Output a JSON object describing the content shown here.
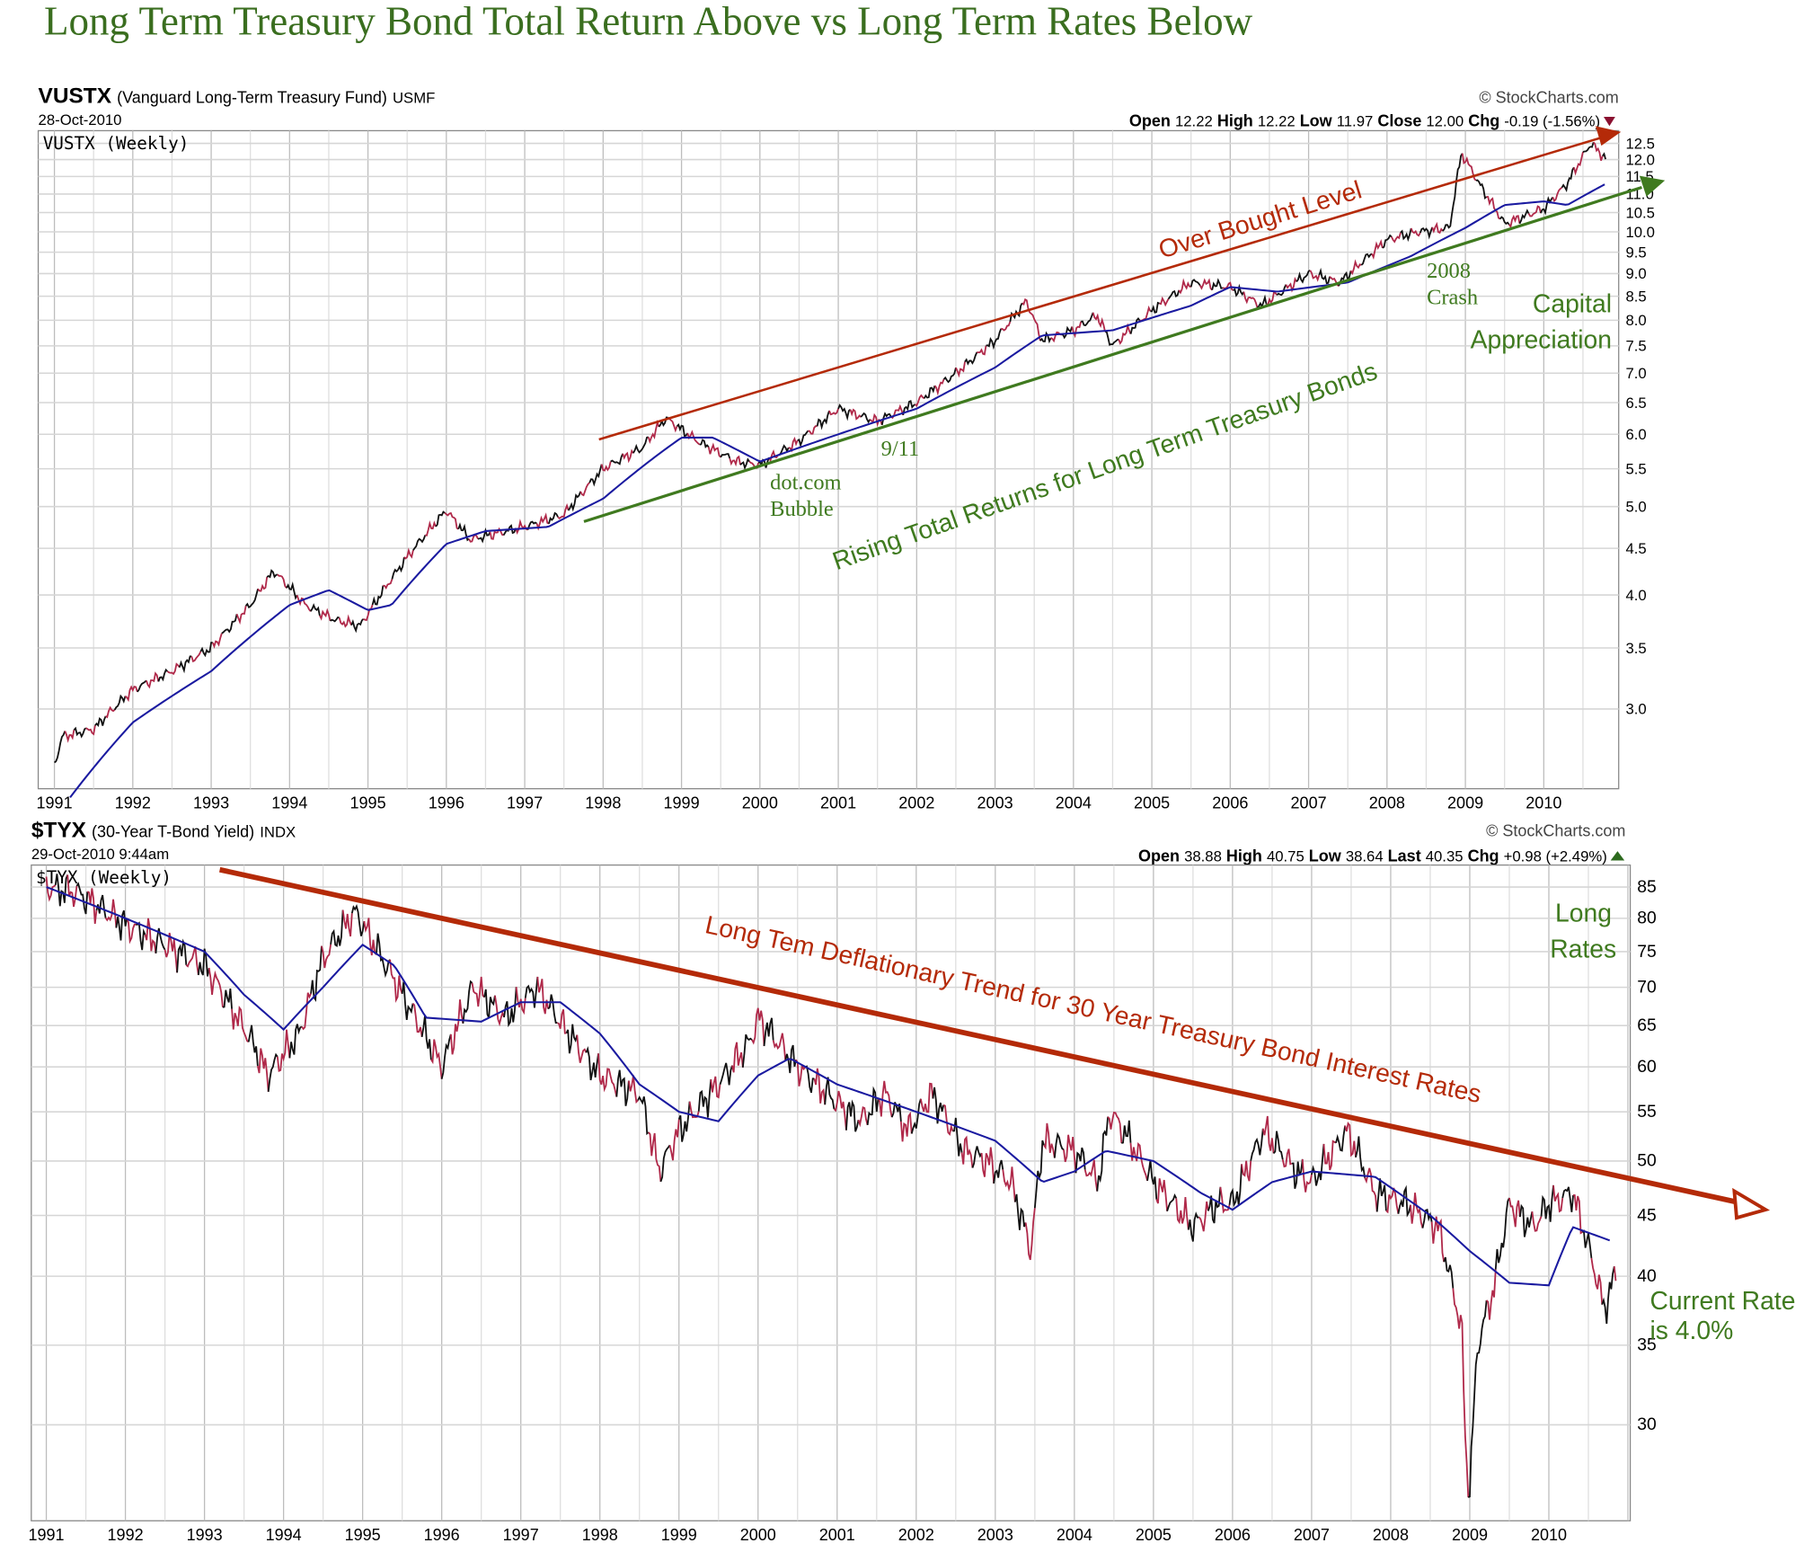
{
  "page_title": "Long Term Treasury Bond Total Return Above vs Long Term Rates Below",
  "colors": {
    "title": "#3a6e1f",
    "annot_green": "#3f7a1f",
    "annot_red": "#b42a08",
    "price_up": "#111111",
    "price_down": "#b0294a",
    "ma": "#1a1aa0",
    "grid": "#cfcfcf"
  },
  "chart_data": [
    {
      "type": "line",
      "symbol": "VUSTX",
      "name": "(Vanguard Long-Term Treasury Fund)",
      "exchange": "USMF",
      "date": "28-Oct-2010",
      "watermark": "© StockCharts.com",
      "legend": "VUSTX (Weekly)",
      "quote": [
        {
          "label": "Open",
          "value": "12.22"
        },
        {
          "label": "High",
          "value": "12.22"
        },
        {
          "label": "Low",
          "value": "11.97"
        },
        {
          "label": "Close",
          "value": "12.00"
        },
        {
          "label": "Chg",
          "value": "-0.19 (-1.56%)"
        }
      ],
      "change_direction": "down",
      "yscale": "log",
      "ylim": [
        2.5,
        12.8
      ],
      "xlim": [
        1991.0,
        2010.95
      ],
      "yticks": [
        "3.0",
        "3.5",
        "4.0",
        "4.5",
        "5.0",
        "5.5",
        "6.0",
        "6.5",
        "7.0",
        "7.5",
        "8.0",
        "8.5",
        "9.0",
        "9.5",
        "10.0",
        "10.5",
        "11.0",
        "11.5",
        "12.0",
        "12.5"
      ],
      "xticks": [
        "1991",
        "1992",
        "1993",
        "1994",
        "1995",
        "1996",
        "1997",
        "1998",
        "1999",
        "2000",
        "2001",
        "2002",
        "2003",
        "2004",
        "2005",
        "2006",
        "2007",
        "2008",
        "2009",
        "2010"
      ],
      "series": [
        {
          "name": "VUSTX weekly price",
          "x": [
            1991.0,
            1991.1,
            1991.5,
            1992.0,
            1992.5,
            1993.0,
            1993.5,
            1993.8,
            1994.2,
            1994.6,
            1994.9,
            1995.5,
            1996.0,
            1996.3,
            1997.0,
            1997.5,
            1998.0,
            1998.5,
            1998.8,
            1999.2,
            1999.7,
            2000.0,
            2000.5,
            2001.0,
            2001.5,
            2002.0,
            2002.5,
            2003.0,
            2003.4,
            2003.6,
            2004.0,
            2004.3,
            2004.5,
            2005.0,
            2005.5,
            2006.0,
            2006.4,
            2007.0,
            2007.4,
            2008.0,
            2008.4,
            2008.8,
            2008.95,
            2009.2,
            2009.5,
            2010.0,
            2010.3,
            2010.6,
            2010.8
          ],
          "values": [
            2.6,
            2.8,
            2.85,
            3.15,
            3.3,
            3.5,
            3.9,
            4.25,
            3.9,
            3.75,
            3.7,
            4.4,
            4.95,
            4.6,
            4.75,
            4.9,
            5.5,
            5.8,
            6.25,
            5.9,
            5.6,
            5.55,
            5.9,
            6.4,
            6.2,
            6.5,
            7.0,
            7.6,
            8.4,
            7.6,
            7.8,
            8.1,
            7.5,
            8.2,
            8.8,
            8.7,
            8.3,
            9.0,
            8.8,
            9.8,
            10.0,
            10.1,
            12.2,
            11.2,
            10.2,
            10.6,
            11.3,
            12.5,
            12.0
          ]
        },
        {
          "name": "Moving average",
          "x": [
            1991.2,
            1992.0,
            1993.0,
            1994.0,
            1994.5,
            1995.0,
            1995.3,
            1996.0,
            1996.5,
            1997.3,
            1998.0,
            1998.7,
            1999.0,
            1999.4,
            2000.0,
            2001.0,
            2002.0,
            2003.0,
            2003.6,
            2004.5,
            2005.5,
            2006.0,
            2006.6,
            2007.5,
            2008.3,
            2009.0,
            2009.5,
            2010.0,
            2010.3,
            2010.8
          ],
          "values": [
            2.4,
            2.9,
            3.3,
            3.9,
            4.05,
            3.85,
            3.9,
            4.55,
            4.7,
            4.75,
            5.1,
            5.7,
            5.95,
            5.95,
            5.6,
            6.0,
            6.4,
            7.1,
            7.7,
            7.8,
            8.3,
            8.7,
            8.6,
            8.8,
            9.4,
            10.1,
            10.7,
            10.8,
            10.7,
            11.3
          ]
        }
      ],
      "annotations": {
        "overbought": "Over Bought Level",
        "rising": "Rising Total Returns for Long Term Treasury Bonds",
        "nine_eleven": "9/11",
        "dotcom_1": "dot.com",
        "dotcom_2": "Bubble",
        "crash_1": "2008",
        "crash_2": "Crash",
        "capital_1": "Capital",
        "capital_2": "Appreciation"
      }
    },
    {
      "type": "line",
      "symbol": "$TYX",
      "name": "(30-Year T-Bond Yield)",
      "exchange": "INDX",
      "date": "29-Oct-2010 9:44am",
      "watermark": "© StockCharts.com",
      "legend": "$TYX (Weekly)",
      "quote": [
        {
          "label": "Open",
          "value": "38.88"
        },
        {
          "label": "High",
          "value": "40.75"
        },
        {
          "label": "Low",
          "value": "38.64"
        },
        {
          "label": "Last",
          "value": "40.35"
        },
        {
          "label": "Chg",
          "value": "+0.98 (+2.49%)"
        }
      ],
      "change_direction": "up",
      "yscale": "log",
      "ylim": [
        26,
        88
      ],
      "xlim": [
        1991.0,
        2010.95
      ],
      "yticks": [
        "30",
        "35",
        "40",
        "45",
        "50",
        "55",
        "60",
        "65",
        "70",
        "75",
        "80",
        "85"
      ],
      "xticks": [
        "1991",
        "1992",
        "1993",
        "1994",
        "1995",
        "1996",
        "1997",
        "1998",
        "1999",
        "2000",
        "2001",
        "2002",
        "2003",
        "2004",
        "2005",
        "2006",
        "2007",
        "2008",
        "2009",
        "2010"
      ],
      "series": [
        {
          "name": "$TYX weekly yield",
          "x": [
            1991.0,
            1991.4,
            1992.0,
            1992.5,
            1993.0,
            1993.6,
            1993.8,
            1994.2,
            1994.5,
            1994.9,
            1995.5,
            1996.0,
            1996.4,
            1996.8,
            1997.2,
            1997.6,
            1998.0,
            1998.5,
            1998.75,
            1999.0,
            1999.5,
            1999.9,
            2000.0,
            2000.5,
            2001.0,
            2001.3,
            2001.6,
            2001.9,
            2002.2,
            2002.6,
            2002.9,
            2003.2,
            2003.45,
            2003.6,
            2004.0,
            2004.3,
            2004.45,
            2004.7,
            2005.0,
            2005.5,
            2005.8,
            2006.0,
            2006.4,
            2006.8,
            2007.0,
            2007.45,
            2007.8,
            2008.2,
            2008.6,
            2008.9,
            2008.95,
            2009.0,
            2009.1,
            2009.3,
            2009.5,
            2009.8,
            2010.0,
            2010.3,
            2010.6,
            2010.7,
            2010.85
          ],
          "values": [
            85,
            84,
            79,
            76,
            73,
            63,
            59,
            64,
            74,
            81,
            69,
            60,
            70,
            66,
            70,
            64,
            59,
            57,
            49,
            53,
            58,
            63,
            66,
            60,
            56,
            54,
            57,
            53,
            57,
            51,
            50,
            48,
            42,
            52,
            51,
            48,
            55,
            52,
            48,
            44,
            46,
            46,
            53,
            49,
            48,
            53,
            47,
            46,
            44,
            36,
            28,
            26.5,
            35,
            39,
            46,
            44,
            46,
            47,
            40,
            37.5,
            40.3
          ]
        },
        {
          "name": "Moving average",
          "x": [
            1991.0,
            1992.0,
            1993.0,
            1993.5,
            1994.0,
            1994.5,
            1995.0,
            1995.4,
            1995.8,
            1996.5,
            1997.0,
            1997.5,
            1998.0,
            1998.5,
            1999.0,
            1999.5,
            2000.0,
            2000.4,
            2001.0,
            2002.0,
            2003.0,
            2003.6,
            2004.0,
            2004.4,
            2005.0,
            2005.6,
            2006.0,
            2006.5,
            2007.0,
            2007.8,
            2008.5,
            2009.0,
            2009.5,
            2010.0,
            2010.3,
            2010.8
          ],
          "values": [
            85,
            80,
            75,
            69,
            64.5,
            70,
            76,
            73,
            66,
            65.5,
            68,
            68,
            64,
            58,
            55,
            54,
            59,
            61,
            58,
            55,
            52,
            48,
            49,
            51,
            50,
            47,
            45.5,
            48,
            49,
            48.5,
            45,
            42,
            39.5,
            39.3,
            44,
            42.8
          ]
        }
      ],
      "annotations": {
        "trend": "Long Tem Deflationary Trend for 30 Year Treasury Bond Interest Rates",
        "long_1": "Long",
        "long_2": "Rates",
        "current_1": "Current Rate",
        "current_2": "is 4.0%"
      }
    }
  ]
}
